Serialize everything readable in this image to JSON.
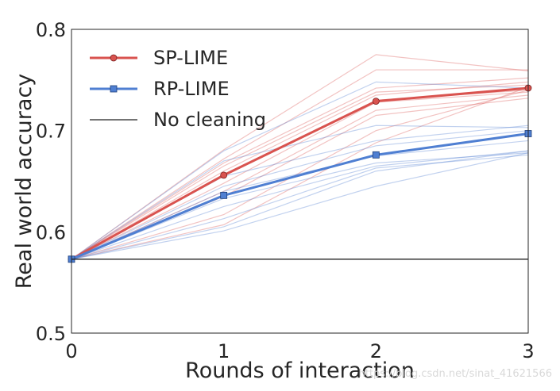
{
  "chart_data": {
    "type": "line",
    "xlabel": "Rounds of interaction",
    "ylabel": "Real world accuracy",
    "x": [
      0,
      1,
      2,
      3
    ],
    "xlim": [
      0,
      3
    ],
    "ylim": [
      0.5,
      0.8
    ],
    "xticks": [
      "0",
      "1",
      "2",
      "3"
    ],
    "yticks": [
      "0.5",
      "0.6",
      "0.7",
      "0.8"
    ],
    "grid": false,
    "legend_position": "top-left",
    "legend": [
      "SP-LIME",
      "RP-LIME",
      "No cleaning"
    ],
    "series": [
      {
        "name": "SP-LIME",
        "color": "#d9534f",
        "marker": "circle",
        "values": [
          0.573,
          0.656,
          0.729,
          0.742
        ]
      },
      {
        "name": "RP-LIME",
        "color": "#4f7fd2",
        "marker": "square",
        "values": [
          0.573,
          0.636,
          0.676,
          0.697
        ]
      },
      {
        "name": "No cleaning",
        "color": "#222222",
        "marker": "none",
        "values": [
          0.573,
          0.573,
          0.573,
          0.573
        ]
      }
    ],
    "runs": {
      "sp_lime": [
        [
          0.573,
          0.681,
          0.775,
          0.759
        ],
        [
          0.573,
          0.672,
          0.76,
          0.76
        ],
        [
          0.573,
          0.668,
          0.742,
          0.752
        ],
        [
          0.573,
          0.665,
          0.738,
          0.745
        ],
        [
          0.573,
          0.66,
          0.735,
          0.748
        ],
        [
          0.573,
          0.655,
          0.73,
          0.74
        ],
        [
          0.573,
          0.648,
          0.728,
          0.738
        ],
        [
          0.573,
          0.64,
          0.72,
          0.735
        ],
        [
          0.573,
          0.635,
          0.715,
          0.732
        ],
        [
          0.573,
          0.617,
          0.7,
          0.74
        ],
        [
          0.573,
          0.607,
          0.688,
          0.743
        ]
      ],
      "rp_lime": [
        [
          0.573,
          0.68,
          0.748,
          0.742
        ],
        [
          0.573,
          0.67,
          0.705,
          0.703
        ],
        [
          0.573,
          0.655,
          0.69,
          0.705
        ],
        [
          0.573,
          0.645,
          0.685,
          0.7
        ],
        [
          0.573,
          0.64,
          0.675,
          0.69
        ],
        [
          0.573,
          0.633,
          0.668,
          0.678
        ],
        [
          0.573,
          0.625,
          0.665,
          0.68
        ],
        [
          0.573,
          0.613,
          0.663,
          0.676
        ],
        [
          0.573,
          0.605,
          0.66,
          0.68
        ],
        [
          0.573,
          0.601,
          0.645,
          0.678
        ]
      ]
    }
  },
  "watermark": "https://blog.csdn.net/sinat_41621566"
}
